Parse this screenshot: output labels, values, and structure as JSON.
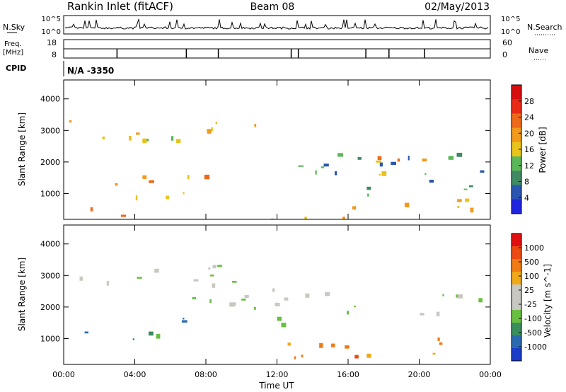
{
  "header": {
    "station": "Rankin Inlet (fitACF)",
    "beam": "Beam 08",
    "date": "02/May/2013"
  },
  "nsky_panel": {
    "left_label": "N.Sky",
    "right_label": "N.Search",
    "left_ticks": [
      "10^5",
      "10^0"
    ],
    "right_ticks": [
      "10^5",
      "10^0"
    ]
  },
  "freq_panel": {
    "left_label_line1": "Freq.",
    "left_label_line2": "[MHz]",
    "right_label": "Nave",
    "left_ticks": [
      "18",
      "8"
    ],
    "right_ticks": [
      "60",
      "0"
    ]
  },
  "cpid_panel": {
    "label": "CPID",
    "value": "N/A -3350"
  },
  "chart_data": [
    {
      "type": "heatmap",
      "title": "",
      "xlabel": "Time UT",
      "ylabel": "Slant Range [km]",
      "xlim": [
        0,
        24
      ],
      "ylim": [
        180,
        4600
      ],
      "x_ticks": [
        "00:00",
        "04:00",
        "08:00",
        "12:00",
        "16:00",
        "20:00",
        "00:00"
      ],
      "y_ticks": [
        1000,
        2000,
        3000,
        4000
      ],
      "colorbar": {
        "label": "Power [dB]",
        "ticks": [
          4,
          8,
          12,
          16,
          20,
          24,
          28
        ],
        "colors": [
          "#1f24e0",
          "#2a55b0",
          "#3f8a63",
          "#5ab858",
          "#e8c41c",
          "#f29a1c",
          "#ee6a1a",
          "#e82a16",
          "#d80e0e"
        ]
      },
      "echo_regions": [
        {
          "t_start": 0.3,
          "t_end": 11.6,
          "range_start": 2400,
          "range_end": 3400,
          "level_db": 18
        },
        {
          "t_start": 1.0,
          "t_end": 8.5,
          "range_start": 800,
          "range_end": 1700,
          "level_db": 20
        },
        {
          "t_start": 1.5,
          "t_end": 4.0,
          "range_start": 180,
          "range_end": 800,
          "level_db": 26
        },
        {
          "t_start": 11.6,
          "t_end": 23.8,
          "range_start": 1000,
          "range_end": 2300,
          "level_db": 10
        },
        {
          "t_start": 17.5,
          "t_end": 23.8,
          "range_start": 1500,
          "range_end": 2400,
          "level_db": 22
        },
        {
          "t_start": 11.6,
          "t_end": 23.0,
          "range_start": 200,
          "range_end": 1000,
          "level_db": 16
        }
      ]
    },
    {
      "type": "heatmap",
      "title": "",
      "xlabel": "Time UT",
      "ylabel": "Slant Range [km]",
      "xlim": [
        0,
        24
      ],
      "ylim": [
        180,
        4600
      ],
      "x_ticks": [
        "00:00",
        "04:00",
        "08:00",
        "12:00",
        "16:00",
        "20:00",
        "00:00"
      ],
      "y_ticks": [
        1000,
        2000,
        3000,
        4000
      ],
      "colorbar": {
        "label": "Velocity [m s^-1]",
        "ticks": [
          1000,
          500,
          100,
          25,
          -25,
          -100,
          -500,
          -1000
        ],
        "colors": [
          "#1a3cc8",
          "#2a6ab0",
          "#3a8e5c",
          "#68c040",
          "#c8c8c0",
          "#c8c8c0",
          "#f0a818",
          "#f07a14",
          "#ec4a12",
          "#e01010"
        ]
      },
      "echo_regions": [
        {
          "t_start": 0.3,
          "t_end": 11.6,
          "range_start": 2000,
          "range_end": 3400,
          "velocity": 0
        },
        {
          "t_start": 1.0,
          "t_end": 7.0,
          "range_start": 800,
          "range_end": 1700,
          "velocity": 150
        },
        {
          "t_start": 11.6,
          "t_end": 23.8,
          "range_start": 1500,
          "range_end": 2600,
          "velocity": 0
        },
        {
          "t_start": 11.6,
          "t_end": 22.5,
          "range_start": 300,
          "range_end": 1200,
          "velocity": -300
        }
      ]
    }
  ]
}
